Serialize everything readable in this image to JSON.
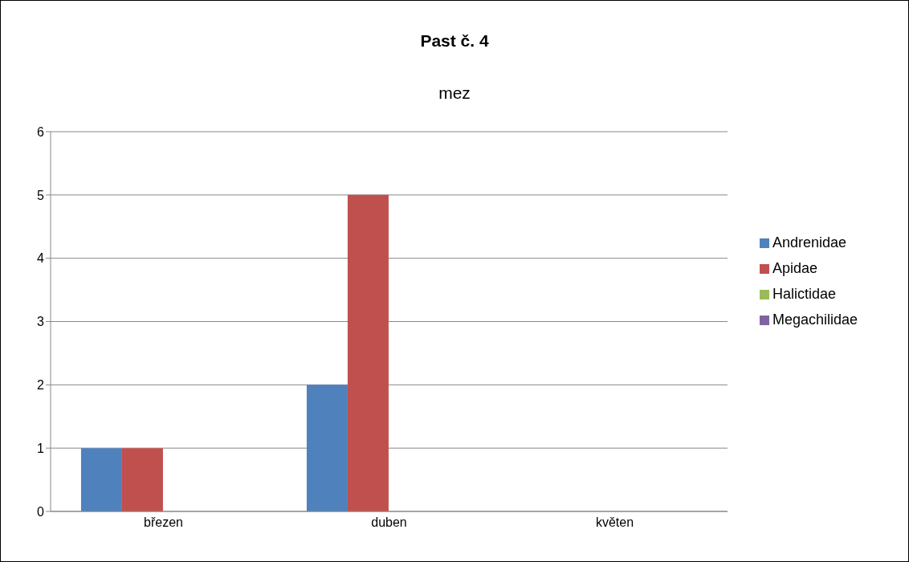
{
  "chart_data": {
    "type": "bar",
    "title": "Past č. 4",
    "subtitle": "mez",
    "categories": [
      "březen",
      "duben",
      "květen"
    ],
    "series": [
      {
        "name": "Andrenidae",
        "color": "#4f81bd",
        "values": [
          1,
          2,
          0
        ]
      },
      {
        "name": "Apidae",
        "color": "#c0504d",
        "values": [
          1,
          5,
          0
        ]
      },
      {
        "name": "Halictidae",
        "color": "#9bbb59",
        "values": [
          0,
          0,
          0
        ]
      },
      {
        "name": "Megachilidae",
        "color": "#8064a2",
        "values": [
          0,
          0,
          0
        ]
      }
    ],
    "ylim": [
      0,
      6
    ],
    "yticks": [
      0,
      1,
      2,
      3,
      4,
      5,
      6
    ],
    "grid": "y",
    "legend": "right"
  }
}
